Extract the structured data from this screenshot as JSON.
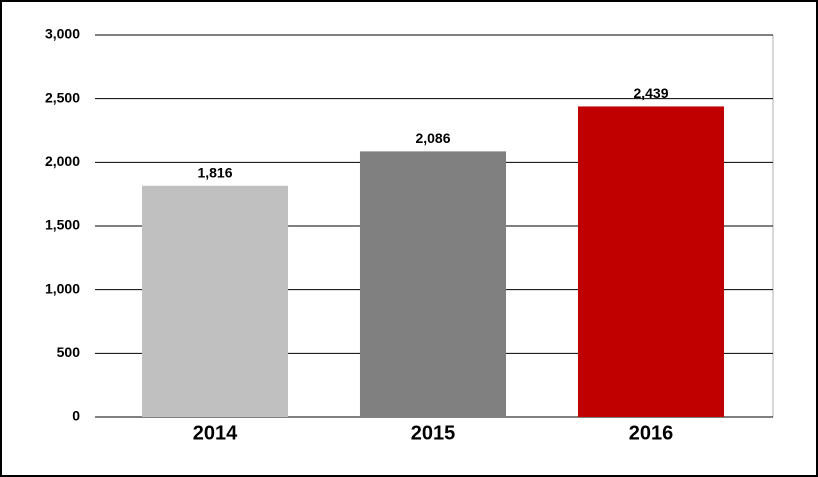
{
  "chart_data": {
    "type": "bar",
    "categories": [
      "2014",
      "2015",
      "2016"
    ],
    "values": [
      1816,
      2086,
      2439
    ],
    "value_labels": [
      "1,816",
      "2,086",
      "2,439"
    ],
    "colors": [
      "#c0c0c0",
      "#808080",
      "#c00000"
    ],
    "ylim": [
      0,
      3000
    ],
    "yticks": [
      0,
      500,
      {
        "value": 1000,
        "label": "1,000"
      },
      {
        "value": 1500,
        "label": "1,500"
      },
      {
        "value": 2000,
        "label": "2,000"
      },
      {
        "value": 2500,
        "label": "2,500"
      },
      {
        "value": 3000,
        "label": "3,000"
      }
    ],
    "grid": true
  }
}
